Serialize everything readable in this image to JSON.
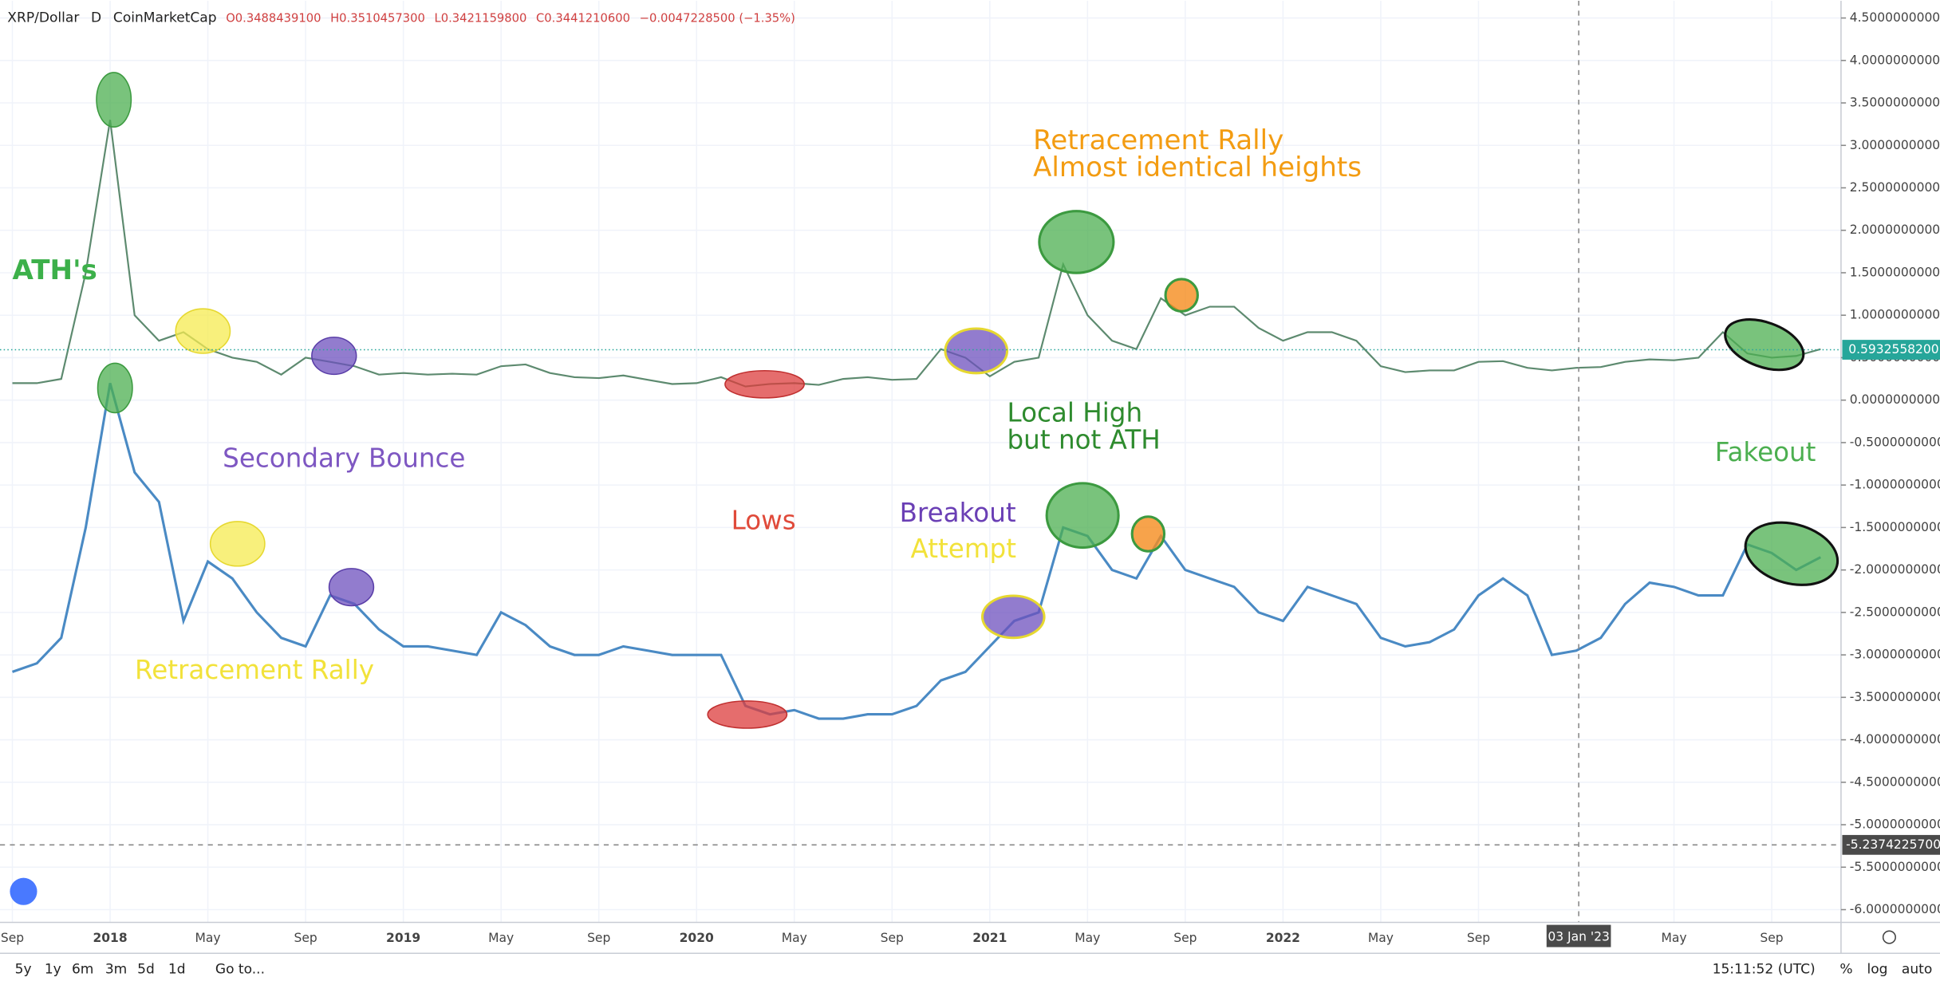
{
  "chart_data": {
    "type": "line",
    "legend": {
      "symbol": "XRP/Dollar",
      "interval": "D",
      "source": "CoinMarketCap",
      "ohlc": [
        "O0.3488439100",
        "H0.3510457300",
        "L0.3421159800",
        "C0.3441210600",
        "−0.0047228500 (−1.35%)"
      ]
    },
    "categories": [
      "Sep",
      null,
      null,
      null,
      "2018",
      null,
      null,
      null,
      "May",
      null,
      null,
      null,
      "Sep",
      null,
      null,
      null,
      "2019",
      null,
      null,
      null,
      "May",
      null,
      null,
      null,
      "Sep",
      null,
      null,
      null,
      "2020",
      null,
      null,
      null,
      "May",
      null,
      null,
      null,
      "Sep",
      null,
      null,
      null,
      "2021",
      null,
      null,
      null,
      "May",
      null,
      null,
      null,
      "Sep",
      null,
      null,
      null,
      "2022",
      null,
      null,
      null,
      "May",
      null,
      null,
      null,
      "Sep",
      null,
      null,
      null,
      null,
      null,
      null,
      null,
      "May",
      null,
      null,
      null,
      "Sep",
      null,
      null
    ],
    "series": [
      {
        "color": "#5d8a6f",
        "values": [
          0.2,
          0.2,
          0.25,
          1.5,
          3.3,
          1.0,
          0.7,
          0.8,
          0.6,
          0.5,
          0.45,
          0.3,
          0.5,
          0.45,
          0.4,
          0.3,
          0.32,
          0.3,
          0.31,
          0.3,
          0.4,
          0.42,
          0.32,
          0.27,
          0.26,
          0.29,
          0.24,
          0.19,
          0.2,
          0.27,
          0.16,
          0.19,
          0.2,
          0.18,
          0.25,
          0.27,
          0.24,
          0.25,
          0.6,
          0.5,
          0.28,
          0.45,
          0.5,
          1.6,
          1.0,
          0.7,
          0.6,
          1.2,
          1.0,
          1.1,
          1.1,
          0.85,
          0.7,
          0.8,
          0.8,
          0.7,
          0.4,
          0.33,
          0.35,
          0.35,
          0.45,
          0.46,
          0.38,
          0.35,
          0.38,
          0.39,
          0.45,
          0.48,
          0.47,
          0.5,
          0.8,
          0.55,
          0.5,
          0.52,
          0.6
        ]
      },
      {
        "color": "#4a8ac4",
        "values": [
          -3.2,
          -3.1,
          -2.8,
          -1.5,
          0.2,
          -0.85,
          -1.2,
          -2.6,
          -1.9,
          -2.1,
          -2.5,
          -2.8,
          -2.9,
          -2.3,
          -2.4,
          -2.7,
          -2.9,
          -2.9,
          -2.95,
          -3.0,
          -2.5,
          -2.65,
          -2.9,
          -3.0,
          -3.0,
          -2.9,
          -2.95,
          -3.0,
          -3.0,
          -3.0,
          -3.6,
          -3.7,
          -3.65,
          -3.75,
          -3.75,
          -3.7,
          -3.7,
          -3.6,
          -3.3,
          -3.2,
          -2.9,
          -2.6,
          -2.5,
          -1.5,
          -1.6,
          -2.0,
          -2.1,
          -1.6,
          -2.0,
          -2.1,
          -2.2,
          -2.5,
          -2.6,
          -2.2,
          -2.3,
          -2.4,
          -2.8,
          -2.9,
          -2.85,
          -2.7,
          -2.3,
          -2.1,
          -2.3,
          -3.0,
          -2.95,
          -2.8,
          -2.4,
          -2.15,
          -2.2,
          -2.3,
          -2.3,
          -1.7,
          -1.8,
          -2.0,
          -1.85
        ]
      }
    ],
    "ylim": [
      -6.15,
      4.63
    ],
    "yticks": [
      {
        "value": 4.5,
        "label": "4.5000000000"
      },
      {
        "value": 4.0,
        "label": "4.0000000000"
      },
      {
        "value": 3.5,
        "label": "3.5000000000"
      },
      {
        "value": 3.0,
        "label": "3.0000000000"
      },
      {
        "value": 2.5,
        "label": "2.5000000000"
      },
      {
        "value": 2.0,
        "label": "2.0000000000"
      },
      {
        "value": 1.5,
        "label": "1.5000000000"
      },
      {
        "value": 1.0,
        "label": "1.0000000000"
      },
      {
        "value": 0.5,
        "label": "0.5000000000"
      },
      {
        "value": 0,
        "label": "0.0000000000"
      },
      {
        "value": -0.5,
        "label": "-0.5000000000"
      },
      {
        "value": -1.0,
        "label": "-1.0000000000"
      },
      {
        "value": -1.5,
        "label": "-1.5000000000"
      },
      {
        "value": -2.0,
        "label": "-2.0000000000"
      },
      {
        "value": -2.5,
        "label": "-2.5000000000"
      },
      {
        "value": -3.0,
        "label": "-3.0000000000"
      },
      {
        "value": -3.5,
        "label": "-3.5000000000"
      },
      {
        "value": -4.0,
        "label": "-4.0000000000"
      },
      {
        "value": -4.5,
        "label": "-4.5000000000"
      },
      {
        "value": -5.0,
        "label": "-5.0000000000"
      },
      {
        "value": -5.5,
        "label": "-5.5000000000"
      },
      {
        "value": -6.0,
        "label": "-6.0000000000"
      }
    ],
    "grid": true,
    "price_line": {
      "value": 0.59325582,
      "label": "0.5932558200",
      "color": "#26a69a"
    },
    "crosshair": {
      "value": -5.23742257,
      "label": "-5.2374225700",
      "x_label": "03 Jan '23"
    },
    "annotations": [
      {
        "text": "ATH's",
        "color": "#3cb04a"
      },
      {
        "text": "Retracement Rally",
        "color": "#f39c12"
      },
      {
        "text": "Almost identical heights",
        "color": "#f39c12"
      },
      {
        "text": "Local High",
        "color": "#2e8b2e"
      },
      {
        "text": "but not ATH",
        "color": "#2e8b2e"
      },
      {
        "text": "Secondary Bounce",
        "color": "#7e57c2"
      },
      {
        "text": "Lows",
        "color": "#e04a3a"
      },
      {
        "text": "Breakout",
        "color": "#6a3fb5"
      },
      {
        "text": "Attempt",
        "color": "#f2e23a"
      },
      {
        "text": "Retracement Rally",
        "color": "#f2e23a"
      },
      {
        "text": "Fakeout",
        "color": "#4caf50"
      }
    ]
  },
  "toolbar": {
    "ranges": [
      "5y",
      "1y",
      "6m",
      "3m",
      "5d",
      "1d"
    ],
    "goto": "Go to...",
    "time": "15:11:52 (UTC)",
    "options": [
      "%",
      "log",
      "auto"
    ]
  }
}
